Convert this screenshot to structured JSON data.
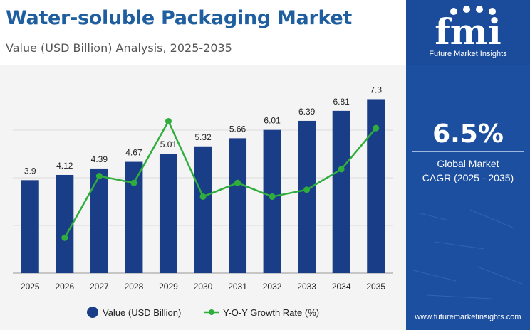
{
  "header": {
    "title": "Water-soluble Packaging Market",
    "subtitle": "Value (USD Billion) Analysis, 2025-2035"
  },
  "sidebar": {
    "brand_letters": "fmi",
    "brand_name": "Future Market Insights",
    "cagr_value": "6.5%",
    "cagr_label_line1": "Global Market",
    "cagr_label_line2": "CAGR (2025 - 2035)",
    "website": "www.futuremarketinsights.com",
    "colors": {
      "background": "#1c4fa0",
      "text": "#ffffff"
    }
  },
  "chart_data": {
    "type": "bar",
    "categories": [
      "2025",
      "2026",
      "2027",
      "2028",
      "2029",
      "2030",
      "2031",
      "2032",
      "2033",
      "2034",
      "2035"
    ],
    "series": [
      {
        "name": "Value (USD Billion)",
        "type": "bar",
        "values": [
          3.9,
          4.12,
          4.39,
          4.67,
          5.01,
          5.32,
          5.66,
          6.01,
          6.39,
          6.81,
          7.3
        ],
        "labels": [
          "3.9",
          "4.12",
          "4.39",
          "4.67",
          "5.01",
          "5.32",
          "5.66",
          "6.01",
          "6.39",
          "6.81",
          "7.3"
        ],
        "color": "#1a3d87"
      },
      {
        "name": "Y-O-Y Growth Rate (%)",
        "type": "line",
        "values": [
          null,
          5.6,
          6.5,
          6.4,
          7.3,
          6.2,
          6.4,
          6.2,
          6.3,
          6.6,
          7.2
        ],
        "color": "#2fae3d"
      }
    ],
    "ylim": [
      0,
      8
    ],
    "grid": true,
    "legend": "bottom"
  }
}
